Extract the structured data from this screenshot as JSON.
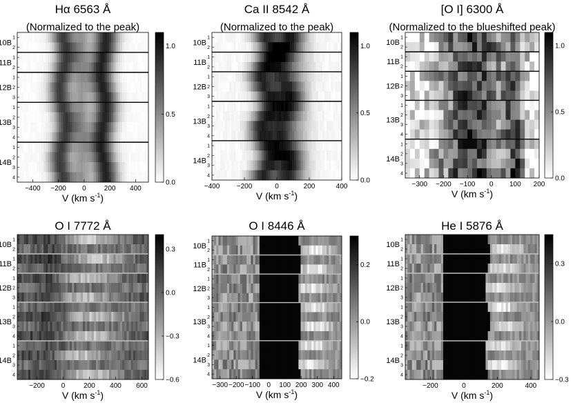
{
  "chart_data": [
    {
      "type": "heatmap",
      "title": "Hα 6563 Å",
      "subtitle": "(Normalized to the peak)",
      "xlabel": "V (km s",
      "xlabel_sup": "-1",
      "xlabel_close": ")",
      "xlim": [
        -520,
        500
      ],
      "xticks": [
        -400,
        -200,
        0,
        200,
        400
      ],
      "xtick_labels": [
        "−400",
        "−200",
        "0",
        "200",
        "400"
      ],
      "groups": [
        {
          "label": "10B",
          "rows": [
            "1",
            "2"
          ]
        },
        {
          "label": "11B",
          "rows": [
            "1",
            "2"
          ]
        },
        {
          "label": "12B",
          "rows": [
            "1",
            "2",
            "3"
          ]
        },
        {
          "label": "13B",
          "rows": [
            "1",
            "2",
            "3",
            "4"
          ]
        },
        {
          "label": "14B",
          "rows": [
            "1",
            "2",
            "3",
            "4"
          ]
        }
      ],
      "colorbar": {
        "ticks": [
          0.0,
          0.5,
          1.0
        ],
        "tick_labels": [
          "0.0",
          "0.5",
          "1.0"
        ],
        "range": [
          0.0,
          1.1
        ]
      },
      "colormap": "gray_reversed",
      "line_color": "#000000"
    },
    {
      "type": "heatmap",
      "title": "Ca II 8542 Å",
      "subtitle": "(Normalized to the peak)",
      "xlabel": "V (km s",
      "xlabel_sup": "-1",
      "xlabel_close": ")",
      "xlim": [
        -400,
        400
      ],
      "xticks": [
        -400,
        -200,
        0,
        200,
        400
      ],
      "xtick_labels": [
        "−400",
        "−200",
        "0",
        "200",
        "400"
      ],
      "groups": [
        {
          "label": "10B",
          "rows": [
            "1",
            "2"
          ]
        },
        {
          "label": "11B",
          "rows": [
            "1",
            "2"
          ]
        },
        {
          "label": "12B",
          "rows": [
            "1",
            "2",
            "3"
          ]
        },
        {
          "label": "13B",
          "rows": [
            "1",
            "2",
            "3",
            "4"
          ]
        },
        {
          "label": "14B",
          "rows": [
            "1",
            "2",
            "3",
            "4"
          ]
        }
      ],
      "colorbar": {
        "ticks": [
          0.0,
          0.5,
          1.0
        ],
        "tick_labels": [
          "0.0",
          "0.5",
          "1.0"
        ],
        "range": [
          0.0,
          1.1
        ]
      },
      "colormap": "gray_reversed",
      "line_color": "#000000"
    },
    {
      "type": "heatmap",
      "title": "[O I] 6300 Å",
      "subtitle": "(Normalized to the blueshifted peak)",
      "xlabel": "V (km s",
      "xlabel_sup": "-1",
      "xlabel_close": ")",
      "xlim": [
        -360,
        200
      ],
      "xticks": [
        -300,
        -200,
        -100,
        0,
        100,
        200
      ],
      "xtick_labels": [
        "−300",
        "−200",
        "−100",
        "0",
        "100",
        "200"
      ],
      "groups": [
        {
          "label": "10B",
          "rows": [
            "1",
            "2"
          ]
        },
        {
          "label": "11B",
          "rows": [
            "1",
            "2"
          ]
        },
        {
          "label": "12B",
          "rows": [
            "1",
            "2",
            "3"
          ]
        },
        {
          "label": "13B",
          "rows": [
            "1",
            "2",
            "3",
            "4"
          ]
        },
        {
          "label": "14B",
          "rows": [
            "1",
            "2",
            "3",
            "4"
          ]
        }
      ],
      "colorbar": {
        "ticks": [
          0.0,
          0.5,
          1.0
        ],
        "tick_labels": [
          "0.0",
          "0.5",
          "1.0"
        ],
        "range": [
          0.0,
          1.1
        ]
      },
      "colormap": "gray_reversed",
      "line_color": "#000000"
    },
    {
      "type": "heatmap",
      "title": "O I 7772 Å",
      "subtitle": "",
      "xlabel": "V (km s",
      "xlabel_sup": "-1",
      "xlabel_close": ")",
      "xlim": [
        -350,
        650
      ],
      "xticks": [
        -200,
        0,
        200,
        400,
        600
      ],
      "xtick_labels": [
        "−200",
        "0",
        "200",
        "400",
        "600"
      ],
      "groups": [
        {
          "label": "10B",
          "rows": [
            "1",
            "2"
          ]
        },
        {
          "label": "11B",
          "rows": [
            "1",
            "2"
          ]
        },
        {
          "label": "12B",
          "rows": [
            "1",
            "2",
            "3"
          ]
        },
        {
          "label": "13B",
          "rows": [
            "1",
            "2",
            "3",
            "4"
          ]
        },
        {
          "label": "14B",
          "rows": [
            "1",
            "2",
            "3",
            "4"
          ]
        }
      ],
      "colorbar": {
        "ticks": [
          -0.6,
          -0.3,
          0.0,
          0.3
        ],
        "tick_labels": [
          "−0.6",
          "−0.3",
          "0.0",
          "0.3"
        ],
        "range": [
          -0.6,
          0.4
        ]
      },
      "colormap": "gray",
      "line_color": "#bfbfbf"
    },
    {
      "type": "heatmap",
      "title": "O I 8446 Å",
      "subtitle": "",
      "xlabel": "V (km s",
      "xlabel_sup": "-1",
      "xlabel_close": ")",
      "xlim": [
        -350,
        450
      ],
      "xticks": [
        -300,
        -200,
        -100,
        0,
        100,
        200,
        300,
        400
      ],
      "xtick_labels": [
        "−300",
        "−200",
        "−100",
        "0",
        "100",
        "200",
        "300",
        "400"
      ],
      "groups": [
        {
          "label": "10B",
          "rows": [
            "1",
            "2"
          ]
        },
        {
          "label": "11B",
          "rows": [
            "1",
            "2"
          ]
        },
        {
          "label": "12B",
          "rows": [
            "1",
            "2",
            "3"
          ]
        },
        {
          "label": "13B",
          "rows": [
            "1",
            "2",
            "3",
            "4"
          ]
        },
        {
          "label": "14B",
          "rows": [
            "1",
            "2",
            "3",
            "4"
          ]
        }
      ],
      "colorbar": {
        "ticks": [
          -0.2,
          0.0,
          0.2
        ],
        "tick_labels": [
          "−0.2",
          "0.0",
          "0.2"
        ],
        "range": [
          -0.2,
          0.3
        ]
      },
      "colormap": "gray",
      "line_color": "#bfbfbf"
    },
    {
      "type": "heatmap",
      "title": "He I 5876 Å",
      "subtitle": "",
      "xlabel": "V (km s",
      "xlabel_sup": "-1",
      "xlabel_close": ")",
      "xlim": [
        -350,
        450
      ],
      "xticks": [
        -200,
        0,
        200,
        400
      ],
      "xtick_labels": [
        "−200",
        "0",
        "200",
        "400"
      ],
      "groups": [
        {
          "label": "10B",
          "rows": [
            "1",
            "2"
          ]
        },
        {
          "label": "11B",
          "rows": [
            "1",
            "2"
          ]
        },
        {
          "label": "12B",
          "rows": [
            "1",
            "2",
            "3"
          ]
        },
        {
          "label": "13B",
          "rows": [
            "1",
            "2",
            "3",
            "4"
          ]
        },
        {
          "label": "14B",
          "rows": [
            "1",
            "2",
            "3",
            "4"
          ]
        }
      ],
      "colorbar": {
        "ticks": [
          -0.3,
          0.0,
          0.3
        ],
        "tick_labels": [
          "−0.3",
          "0.0",
          "0.3"
        ],
        "range": [
          -0.3,
          0.45
        ]
      },
      "colormap": "gray",
      "line_color": "#bfbfbf"
    }
  ]
}
